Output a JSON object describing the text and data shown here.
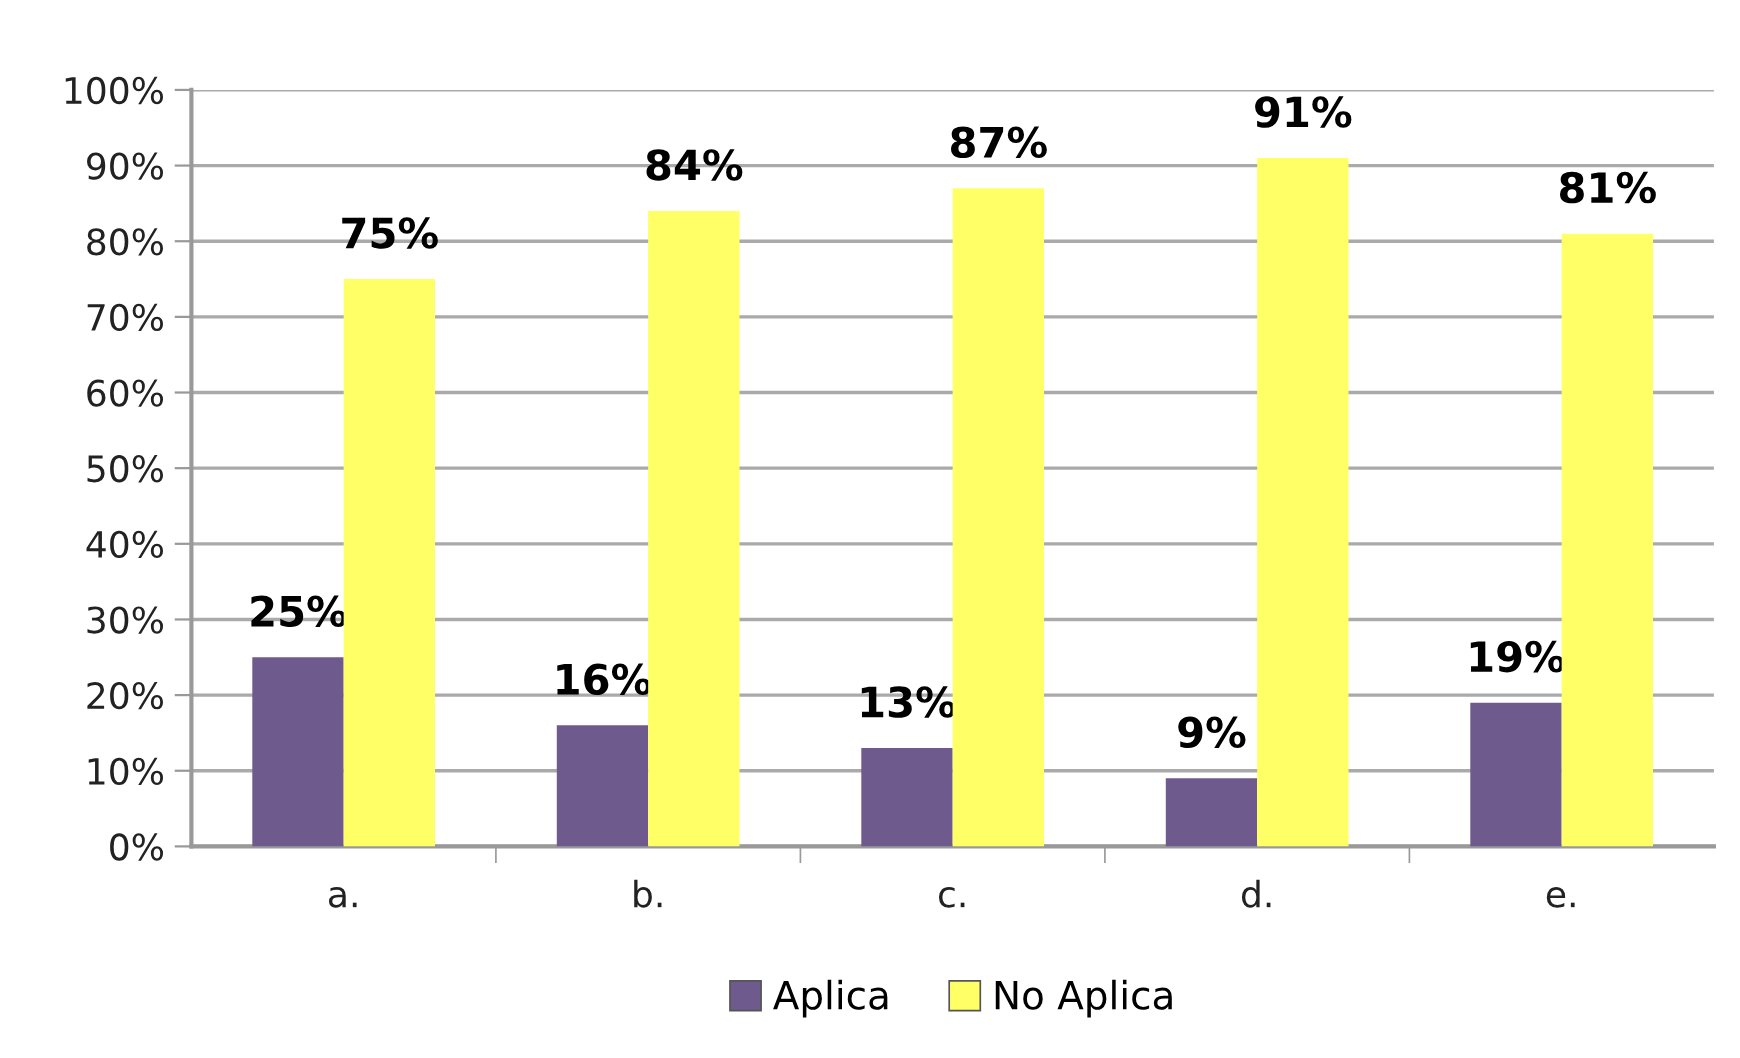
{
  "chart_data": {
    "type": "bar",
    "categories": [
      "a.",
      "b.",
      "c.",
      "d.",
      "e."
    ],
    "series": [
      {
        "name": "Aplica",
        "color": "#6f5a8e",
        "values": [
          25,
          16,
          13,
          9,
          19
        ],
        "value_labels": [
          "25%",
          "16%",
          "13%",
          "9%",
          "19%"
        ]
      },
      {
        "name": "No Aplica",
        "color": "#ffff66",
        "values": [
          75,
          84,
          87,
          91,
          81
        ],
        "value_labels": [
          "75%",
          "84%",
          "87%",
          "91%",
          "81%"
        ]
      }
    ],
    "ylim": [
      0,
      100
    ],
    "yticks": [
      {
        "value": 0,
        "label": "0%"
      },
      {
        "value": 10,
        "label": "10%"
      },
      {
        "value": 20,
        "label": "20%"
      },
      {
        "value": 30,
        "label": "30%"
      },
      {
        "value": 40,
        "label": "40%"
      },
      {
        "value": 50,
        "label": "50%"
      },
      {
        "value": 60,
        "label": "60%"
      },
      {
        "value": 70,
        "label": "70%"
      },
      {
        "value": 80,
        "label": "80%"
      },
      {
        "value": 90,
        "label": "90%"
      },
      {
        "value": 100,
        "label": "100%"
      }
    ],
    "grid": "y",
    "legend": "bottom"
  }
}
